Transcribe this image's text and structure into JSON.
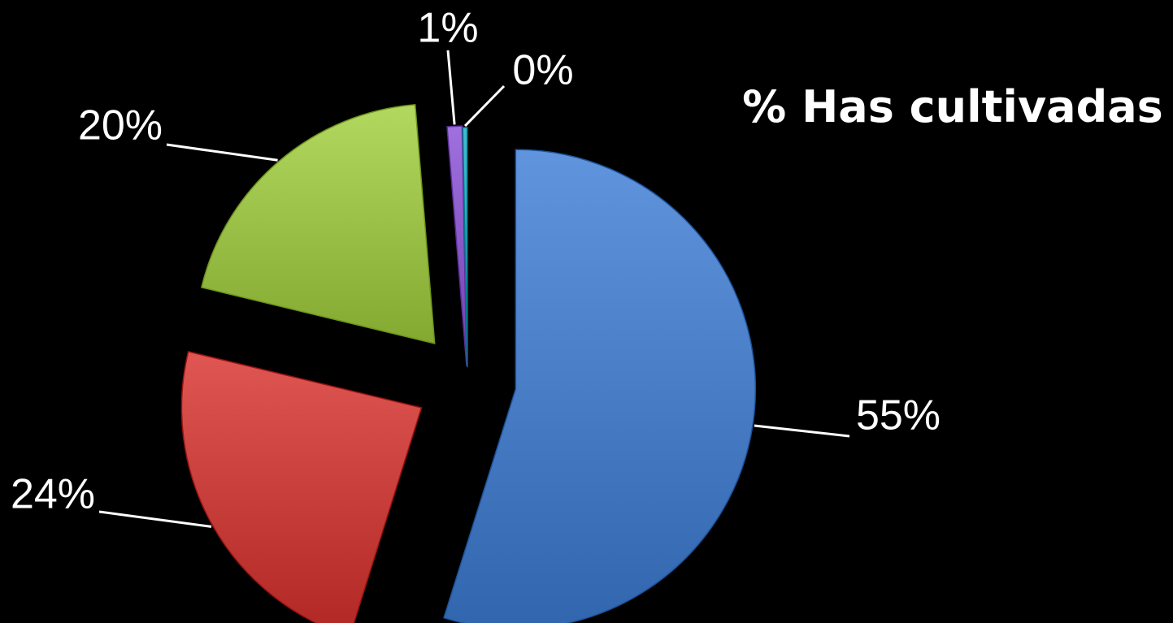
{
  "chart_data": {
    "type": "pie",
    "title": "% Has cultivadas",
    "exploded": true,
    "slices": [
      {
        "value": 55,
        "label": "55%",
        "color": "#4a7fc8"
      },
      {
        "value": 24,
        "label": "24%",
        "color": "#c9403d"
      },
      {
        "value": 20,
        "label": "20%",
        "color": "#9cc24a"
      },
      {
        "value": 1,
        "label": "1%",
        "color": "#8a5ac8"
      },
      {
        "value": 0.3,
        "label": "0%",
        "color": "#2aa8b8"
      }
    ]
  },
  "colors": {
    "background": "#000000",
    "text": "#ffffff",
    "leader_line": "#ffffff"
  }
}
